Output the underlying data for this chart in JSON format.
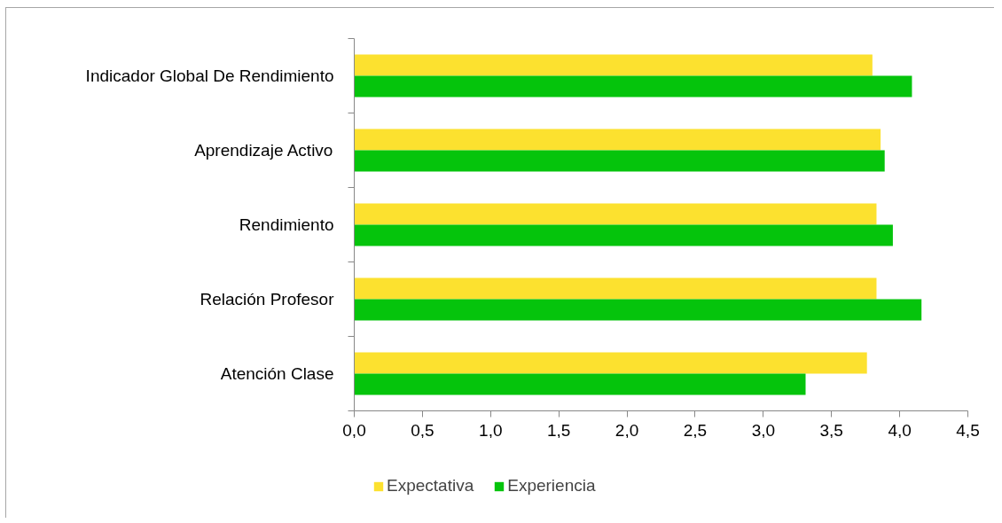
{
  "chart_data": {
    "type": "bar",
    "orientation": "horizontal",
    "categories": [
      "Indicador Global De Rendimiento",
      "Aprendizaje Activo",
      "Rendimiento",
      "Relación Profesor",
      "Atención Clase"
    ],
    "series": [
      {
        "name": "Expectativa",
        "color": "#fce12f",
        "values": [
          3.8,
          3.86,
          3.83,
          3.83,
          3.76
        ]
      },
      {
        "name": "Experiencia",
        "color": "#05c40c",
        "values": [
          4.09,
          3.89,
          3.95,
          4.16,
          3.31
        ]
      }
    ],
    "xlim": [
      0,
      4.5
    ],
    "xticks": [
      {
        "value": 0,
        "label": "0,0"
      },
      {
        "value": 0.5,
        "label": "0,5"
      },
      {
        "value": 1,
        "label": "1,0"
      },
      {
        "value": 1.5,
        "label": "1,5"
      },
      {
        "value": 2,
        "label": "2,0"
      },
      {
        "value": 2.5,
        "label": "2,5"
      },
      {
        "value": 3,
        "label": "3,0"
      },
      {
        "value": 3.5,
        "label": "3,5"
      },
      {
        "value": 4,
        "label": "4,0"
      },
      {
        "value": 4.5,
        "label": "4,5"
      }
    ],
    "grid": false,
    "legend": "bottom"
  }
}
